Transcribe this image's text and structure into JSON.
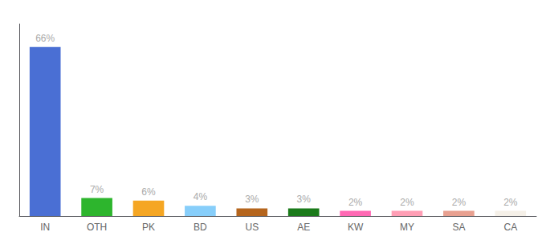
{
  "chart_data": {
    "type": "bar",
    "categories": [
      "IN",
      "OTH",
      "PK",
      "BD",
      "US",
      "AE",
      "KW",
      "MY",
      "SA",
      "CA"
    ],
    "values": [
      66,
      7,
      6,
      4,
      3,
      3,
      2,
      2,
      2,
      2
    ],
    "value_labels": [
      "66%",
      "7%",
      "6%",
      "4%",
      "3%",
      "3%",
      "2%",
      "2%",
      "2%",
      "2%"
    ],
    "colors": [
      "#4a6fd4",
      "#2db52d",
      "#f5a623",
      "#87cefa",
      "#b5651d",
      "#1a7a1a",
      "#ff69b4",
      "#ff9eb5",
      "#e8a090",
      "#f5f0e8"
    ],
    "ylim": [
      0,
      75
    ],
    "grid": false,
    "data_labels": true,
    "tick_labels": "x"
  }
}
